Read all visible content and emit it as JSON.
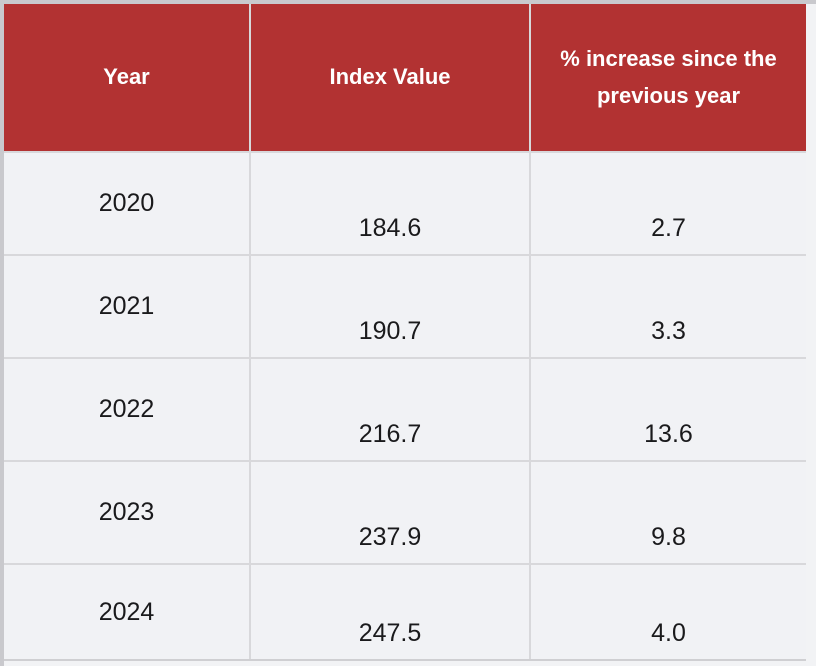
{
  "page": {
    "background_color": "#f2f3f5",
    "frame_color": "#c9c9cd"
  },
  "chart_data": {
    "type": "table",
    "columns": [
      "Year",
      "Index Value",
      "% increase since the previous year"
    ],
    "rows": [
      [
        "2020",
        "184.6",
        "2.7"
      ],
      [
        "2021",
        "190.7",
        "3.3"
      ],
      [
        "2022",
        "216.7",
        "13.6"
      ],
      [
        "2023",
        "237.9",
        "9.8"
      ],
      [
        "2024",
        "247.5",
        "4.0"
      ]
    ],
    "title": "",
    "colors": {
      "header_bg": "#b23232",
      "header_text": "#ffffff",
      "row_bg": "#f1f2f5",
      "border": "#d8d8db",
      "text": "#1a1a1c"
    }
  }
}
